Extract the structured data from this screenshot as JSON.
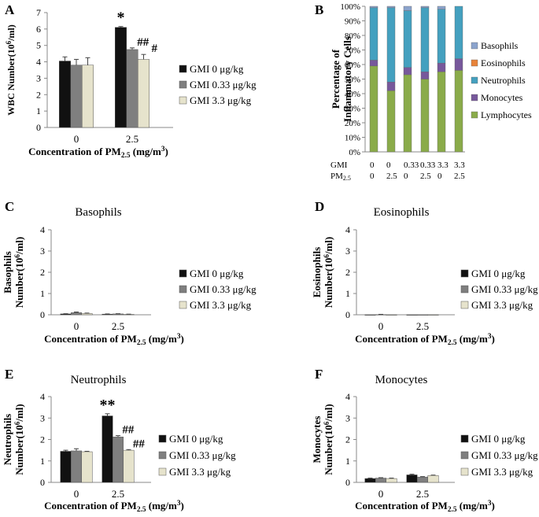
{
  "colors": {
    "gmi0": "#111111",
    "gmi033": "#7f7f7f",
    "gmi33": "#e6e3cc",
    "basophils": "#8ba3cc",
    "eosinophils": "#e8833a",
    "neutrophils": "#44a0bf",
    "monocytes": "#77589b",
    "lymphocytes": "#8aab4a",
    "axis": "#888888"
  },
  "legend_grouped": [
    "GMI 0 μg/kg",
    "GMI 0.33 μg/kg",
    "GMI 3.3 μg/kg"
  ],
  "xlabel": {
    "main": "Concentration of PM",
    "sub": "2.5",
    "unit_pre": " (mg/m",
    "unit_sup": "3",
    "unit_post": ")"
  },
  "chart_data": [
    {
      "panel": "A",
      "type": "bar",
      "title": "",
      "ylabel": [
        "WBC Number(10",
        "6",
        "/ml)"
      ],
      "categories": [
        "0",
        "2.5"
      ],
      "ylim": [
        0,
        7
      ],
      "yticks": [
        "0",
        "1",
        "2",
        "3",
        "4",
        "5",
        "6",
        "7"
      ],
      "series": [
        {
          "name": "GMI 0 μg/kg",
          "values": [
            4.05,
            6.1
          ],
          "errors": [
            0.25,
            0.05
          ]
        },
        {
          "name": "GMI 0.33 μg/kg",
          "values": [
            3.8,
            4.75
          ],
          "errors": [
            0.35,
            0.1
          ]
        },
        {
          "name": "GMI 3.3 μg/kg",
          "values": [
            3.8,
            4.15
          ],
          "errors": [
            0.45,
            0.3
          ]
        }
      ],
      "annotations": [
        {
          "series": 0,
          "category": 1,
          "text": "*"
        },
        {
          "series": 1,
          "category": 1,
          "text": "##"
        },
        {
          "series": 2,
          "category": 1,
          "text": "#"
        }
      ]
    },
    {
      "panel": "B",
      "type": "stacked-bar",
      "ylabel": [
        "Percentage of",
        "Inflammatory Cells"
      ],
      "yticks": [
        "0%",
        "10%",
        "20%",
        "30%",
        "40%",
        "50%",
        "60%",
        "70%",
        "80%",
        "90%",
        "100%"
      ],
      "row_labels": [
        "GMI",
        "PM2.5"
      ],
      "gmi_labels": [
        "0",
        "0",
        "0.33",
        "0.33",
        "3.3",
        "3.3"
      ],
      "pm_labels": [
        "0",
        "2.5",
        "0",
        "2.5",
        "0",
        "2.5"
      ],
      "legend": [
        "Basophils",
        "Eosinophils",
        "Neutrophils",
        "Monocytes",
        "Lymphocytes"
      ],
      "series": [
        {
          "name": "Lymphocytes",
          "values": [
            59,
            42,
            53,
            50,
            55,
            56
          ]
        },
        {
          "name": "Monocytes",
          "values": [
            4,
            6,
            5,
            5,
            6,
            8
          ]
        },
        {
          "name": "Neutrophils",
          "values": [
            36,
            51,
            39,
            44,
            37,
            36
          ]
        },
        {
          "name": "Eosinophils",
          "values": [
            0,
            0,
            0,
            0,
            0,
            0
          ]
        },
        {
          "name": "Basophils",
          "values": [
            1,
            1,
            3,
            1,
            2,
            0
          ]
        }
      ]
    },
    {
      "panel": "C",
      "type": "bar",
      "title": "Basophils",
      "ylabel": [
        "Basophils",
        "Number(10",
        "6",
        "/ml)"
      ],
      "categories": [
        "0",
        "2.5"
      ],
      "ylim": [
        0,
        4
      ],
      "yticks": [
        "0",
        "1",
        "2",
        "3",
        "4"
      ],
      "series": [
        {
          "name": "GMI 0 μg/kg",
          "values": [
            0.04,
            0.03
          ],
          "errors": [
            0.01,
            0.01
          ]
        },
        {
          "name": "GMI 0.33 μg/kg",
          "values": [
            0.1,
            0.04
          ],
          "errors": [
            0.03,
            0.01
          ]
        },
        {
          "name": "GMI 3.3 μg/kg",
          "values": [
            0.06,
            0.02
          ],
          "errors": [
            0.02,
            0.01
          ]
        }
      ],
      "annotations": []
    },
    {
      "panel": "D",
      "type": "bar",
      "title": "Eosinophils",
      "ylabel": [
        "Eosinophils",
        "Number(10",
        "6",
        "/ml)"
      ],
      "categories": [
        "0",
        "2.5"
      ],
      "ylim": [
        0,
        4
      ],
      "yticks": [
        "0",
        "1",
        "2",
        "3",
        "4"
      ],
      "series": [
        {
          "name": "GMI 0 μg/kg",
          "values": [
            0,
            0
          ],
          "errors": [
            0,
            0
          ]
        },
        {
          "name": "GMI 0.33 μg/kg",
          "values": [
            0.01,
            0
          ],
          "errors": [
            0.01,
            0
          ]
        },
        {
          "name": "GMI 3.3 μg/kg",
          "values": [
            0,
            0
          ],
          "errors": [
            0,
            0
          ]
        }
      ],
      "annotations": []
    },
    {
      "panel": "E",
      "type": "bar",
      "title": "Neutrophils",
      "ylabel": [
        "Neutrophils",
        "Number(10",
        "6",
        "/ml)"
      ],
      "categories": [
        "0",
        "2.5"
      ],
      "ylim": [
        0,
        4
      ],
      "yticks": [
        "0",
        "1",
        "2",
        "3",
        "4"
      ],
      "series": [
        {
          "name": "GMI 0 μg/kg",
          "values": [
            1.45,
            3.1
          ],
          "errors": [
            0.05,
            0.1
          ]
        },
        {
          "name": "GMI 0.33 μg/kg",
          "values": [
            1.47,
            2.12
          ],
          "errors": [
            0.1,
            0.06
          ]
        },
        {
          "name": "GMI 3.3 μg/kg",
          "values": [
            1.43,
            1.5
          ],
          "errors": [
            0.02,
            0.03
          ]
        }
      ],
      "annotations": [
        {
          "series": 0,
          "category": 1,
          "text": "**"
        },
        {
          "series": 1,
          "category": 1,
          "text": "##"
        },
        {
          "series": 2,
          "category": 1,
          "text": "##"
        }
      ]
    },
    {
      "panel": "F",
      "type": "bar",
      "title": "Monocytes",
      "ylabel": [
        "Monocytes",
        "Number(10",
        "6",
        "/ml)"
      ],
      "categories": [
        "0",
        "2.5"
      ],
      "ylim": [
        0,
        4
      ],
      "yticks": [
        "0",
        "1",
        "2",
        "3",
        "4"
      ],
      "series": [
        {
          "name": "GMI 0 μg/kg",
          "values": [
            0.18,
            0.35
          ],
          "errors": [
            0.02,
            0.03
          ]
        },
        {
          "name": "GMI 0.33 μg/kg",
          "values": [
            0.2,
            0.25
          ],
          "errors": [
            0.02,
            0.02
          ]
        },
        {
          "name": "GMI 3.3 μg/kg",
          "values": [
            0.18,
            0.32
          ],
          "errors": [
            0.02,
            0.02
          ]
        }
      ],
      "annotations": []
    }
  ]
}
